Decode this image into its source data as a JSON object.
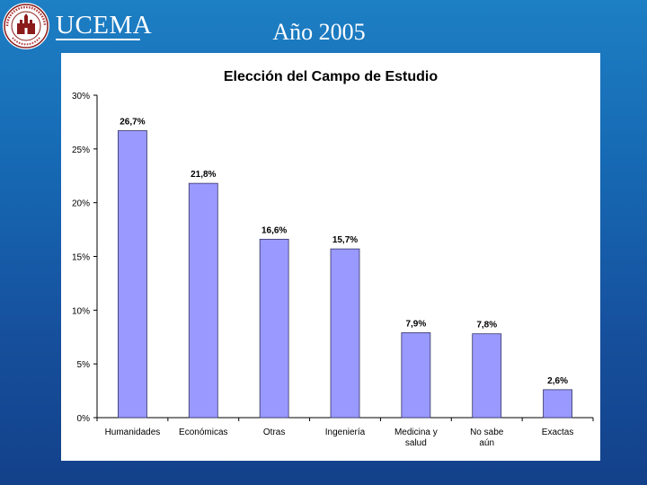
{
  "header": {
    "brand": "UCEMA",
    "slide_title": "Año 2005",
    "logo_icon": "university-seal-icon",
    "logo_text": "UNIVERSIDAD DEL CEMA"
  },
  "colors": {
    "background": "#1668b3",
    "bar": "#9999ff",
    "bar_stroke": "#333366"
  },
  "chart_data": {
    "type": "bar",
    "title": "Elección del Campo de Estudio",
    "xlabel": "",
    "ylabel": "",
    "categories": [
      "Humanidades",
      "Económicas",
      "Otras",
      "Ingeniería",
      "Medicina y salud",
      "No sabe aún",
      "Exactas"
    ],
    "values": [
      26.7,
      21.8,
      16.6,
      15.7,
      7.9,
      7.8,
      2.6
    ],
    "data_labels": [
      "26,7%",
      "21,8%",
      "16,6%",
      "15,7%",
      "7,9%",
      "7,8%",
      "2,6%"
    ],
    "ylim": [
      0,
      30
    ],
    "yticks": [
      0,
      5,
      10,
      15,
      20,
      25,
      30
    ],
    "ytick_labels": [
      "0%",
      "5%",
      "10%",
      "15%",
      "20%",
      "25%",
      "30%"
    ],
    "grid": false,
    "legend": "none"
  }
}
